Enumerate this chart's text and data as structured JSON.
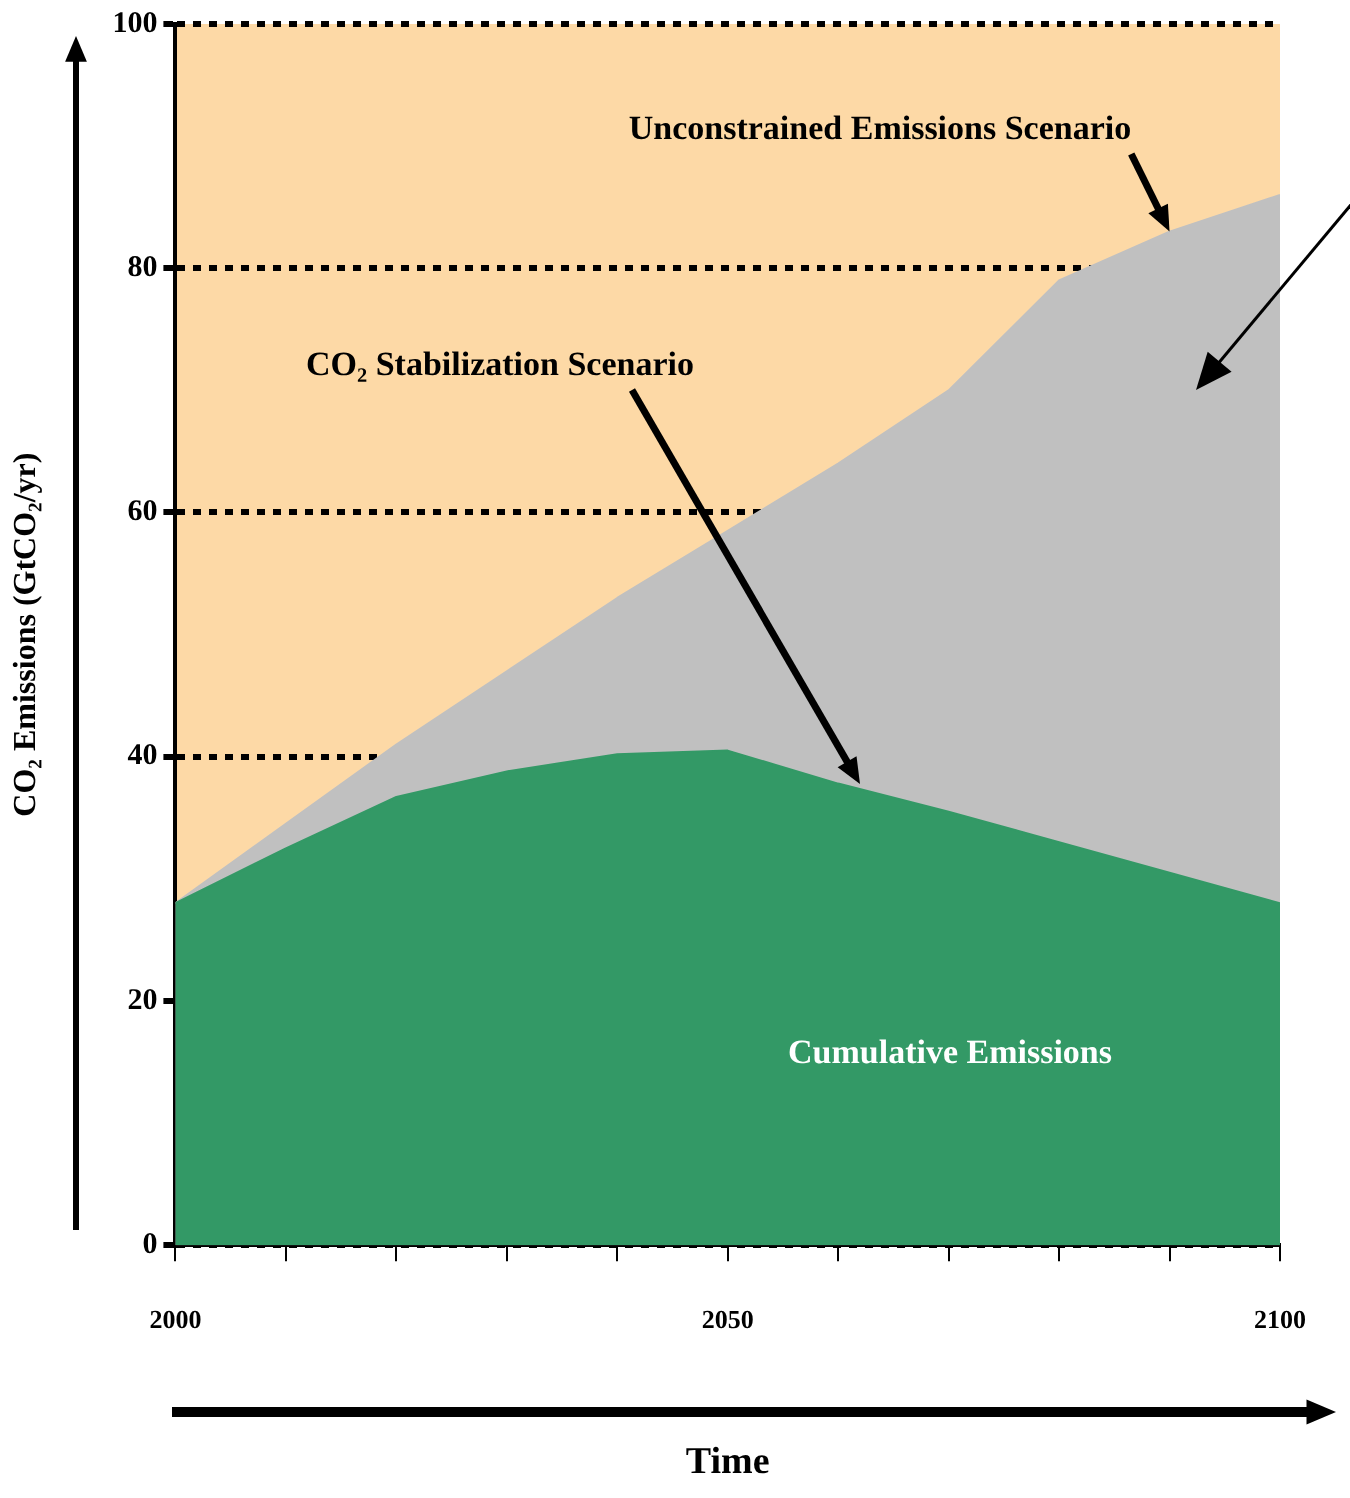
{
  "chart_data": {
    "type": "area",
    "xlabel": "Time",
    "ylabel": "CO₂ Emissions (GtCO₂/yr)",
    "x": [
      2000,
      2010,
      2020,
      2030,
      2040,
      2050,
      2060,
      2070,
      2080,
      2090,
      2100
    ],
    "series": [
      {
        "color": "#c0c0c0",
        "values": [
          28,
          34.5,
          41,
          47,
          53,
          58.5,
          64,
          70,
          79,
          83,
          86
        ]
      },
      {
        "color": "#339966",
        "values": [
          28,
          32.5,
          36.7,
          38.8,
          40.2,
          40.5,
          37.8,
          35.5,
          33,
          30.5,
          28
        ]
      }
    ],
    "xlim": [
      2000,
      2100
    ],
    "xticks": [
      2000,
      {
        "value": 2010,
        "label": null
      },
      {
        "value": 2020,
        "label": null
      },
      {
        "value": 2030,
        "label": null
      },
      {
        "value": 2040,
        "label": null
      },
      2050,
      {
        "value": 2060,
        "label": null
      },
      {
        "value": 2070,
        "label": null
      },
      {
        "value": 2080,
        "label": null
      },
      {
        "value": 2090,
        "label": null
      },
      2100
    ],
    "ylim": [
      0,
      100
    ],
    "yticks": [
      0,
      20,
      40,
      60,
      80,
      100
    ],
    "grid": "y",
    "legend": false,
    "annotations": [
      {
        "text": "Unconstrained Emissions Scenario",
        "x": 2090,
        "y": 83
      },
      "CO₂ Stabilization Scenario",
      "Cumulative Emissions"
    ]
  }
}
